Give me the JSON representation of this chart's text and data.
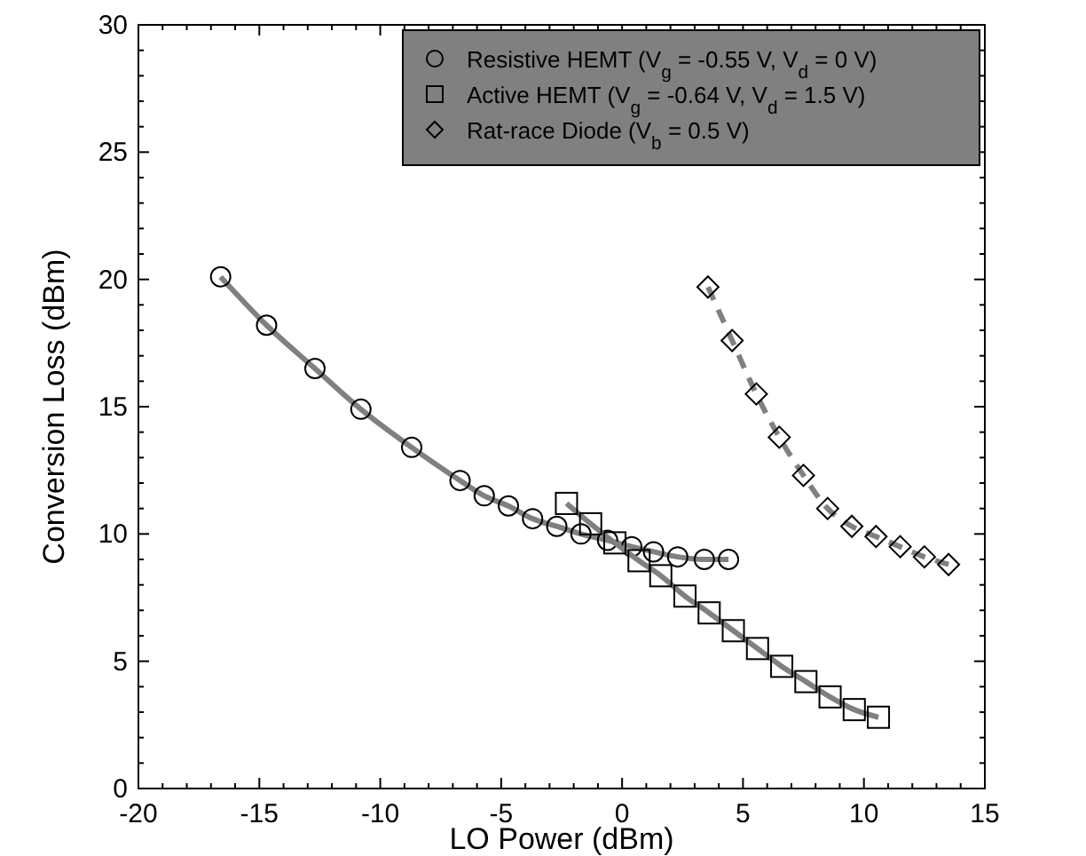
{
  "chart_data": {
    "type": "line",
    "xlabel": "LO Power (dBm)",
    "ylabel": "Conversion Loss (dBm)",
    "xlim": [
      -20,
      15
    ],
    "xticks": [
      -20,
      -15,
      -10,
      -5,
      0,
      5,
      10,
      15
    ],
    "ylim": [
      0,
      30
    ],
    "yticks": [
      0,
      5,
      10,
      15,
      20,
      25,
      30
    ],
    "grid": false,
    "legend": "top right",
    "line_style": "solid",
    "series": [
      {
        "name": "Resistive HEMT (V$_{g}$ = -0.55 V, V$_{d}$ = 0 V)",
        "color": "#808080",
        "marker": "circle",
        "x": [
          -16.6,
          -14.7,
          -12.7,
          -10.8,
          -8.7,
          -6.7,
          -5.7,
          -4.7,
          -3.7,
          -2.7,
          -1.7,
          -0.6,
          0.4,
          1.3,
          2.3,
          3.4,
          4.4
        ],
        "values": [
          20.1,
          18.2,
          16.5,
          14.9,
          13.4,
          12.1,
          11.5,
          11.1,
          10.6,
          10.3,
          10.0,
          9.75,
          9.5,
          9.3,
          9.1,
          9.0,
          9.0
        ]
      },
      {
        "name": "Active HEMT (V$_{g}$ = -0.64 V, V$_{d}$ = 1.5 V)",
        "color": "#808080",
        "marker": "square",
        "x": [
          -2.3,
          -1.3,
          -0.3,
          0.7,
          1.6,
          2.6,
          3.6,
          4.6,
          5.6,
          6.6,
          7.6,
          8.6,
          9.6,
          10.6
        ],
        "values": [
          11.2,
          10.4,
          9.65,
          8.95,
          8.36,
          7.56,
          6.9,
          6.2,
          5.5,
          4.8,
          4.2,
          3.6,
          3.1,
          2.8
        ]
      },
      {
        "name": "Rat-race Diode (V$_{b}$ = 0.5 V)",
        "color": "#808080",
        "marker": "diamond",
        "line_style": "dashed",
        "x": [
          3.55,
          4.55,
          5.55,
          6.5,
          7.5,
          8.5,
          9.5,
          10.5,
          11.5,
          12.5,
          13.5
        ],
        "values": [
          19.7,
          17.6,
          15.5,
          13.8,
          12.3,
          11.0,
          10.3,
          9.9,
          9.5,
          9.1,
          8.8
        ]
      }
    ]
  }
}
